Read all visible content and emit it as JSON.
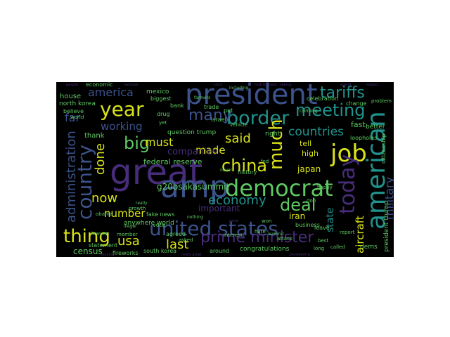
{
  "colors": {
    "background": "#000000",
    "purple": "#472c7a",
    "blue": "#3b528b",
    "teal": "#21918c",
    "green": "#5ec962",
    "yellow": "#d8e219"
  },
  "words": {
    "president": "president",
    "great": "great",
    "amp": "amp",
    "democrat": "democrat",
    "united_states": "united states",
    "american": "american",
    "country": "country",
    "job": "job",
    "year": "year",
    "border": "border",
    "meeting": "meeting",
    "tariffs": "tariffs",
    "china": "china",
    "prime_minister": "prime minister",
    "today": "today",
    "thing": "thing",
    "many": "many",
    "much": "much",
    "big": "big",
    "deal": "deal",
    "economy": "economy",
    "countries": "countries",
    "america": "america",
    "administration": "administration",
    "military": "military",
    "said": "said",
    "usa": "usa",
    "now": "now",
    "last": "last",
    "done": "done",
    "must": "must",
    "made": "made",
    "working": "working",
    "number": "number",
    "aircraft": "aircraft",
    "state": "state",
    "far": "far",
    "g20osakasummit": "g20osakasummit",
    "japan": "japan",
    "federal_reserve": "federal reserve",
    "companies": "companies",
    "important": "important",
    "census": "census",
    "iran": "iran",
    "tell": "tell",
    "high": "high",
    "dems": "dems",
    "president_trump": "president trump",
    "congratulations": "congratulations",
    "house": "house",
    "north_korea": "north korea",
    "mexico": "mexico",
    "question_trump": "question trump",
    "thank": "thank",
    "south_korea": "south korea",
    "fireworks": "fireworks",
    "anywhere_world": "anywhere world",
    "fake_news": "fake news",
    "statement": "statement",
    "around": "around",
    "long": "long",
    "called": "called",
    "best": "best",
    "better": "better",
    "fast": "fast",
    "business": "business",
    "leave": "leave",
    "history": "history",
    "israel": "israel",
    "trade": "trade",
    "economic": "economic",
    "bank": "bank",
    "biggest": "biggest",
    "drug": "drug",
    "believe": "believe",
    "world": "world",
    "put": "put",
    "vehicle": "vehicle",
    "celebration": "celebration",
    "change": "change",
    "coming": "coming",
    "problem": "problem",
    "loopholes": "loopholes",
    "citizenship": "citizenship",
    "right": "right",
    "growth": "growth",
    "really": "really",
    "obama": "obama",
    "member": "member",
    "lawyer": "lawyer",
    "vote": "vote",
    "nothing": "nothing",
    "agreed": "agreed",
    "asked": "asked",
    "interest": "interest",
    "hate": "hate",
    "won": "won",
    "summit": "summit",
    "including": "including",
    "report": "report",
    "attack": "attack",
    "yet": "yet",
    "never": "never",
    "don": "don",
    "happy": "happy",
    "fed": "fed",
    "point": "point",
    "illegal": "illegal",
    "farmers": "farmers",
    "people": "people",
    "leaving": "leaving",
    "national": "national",
    "really_great": "really great",
    "president_xi": "president xi",
    "look_forward": "look forward",
    "seeing": "seeing",
    "respect": "respect",
    "spend": "spend",
    "story": "story"
  }
}
